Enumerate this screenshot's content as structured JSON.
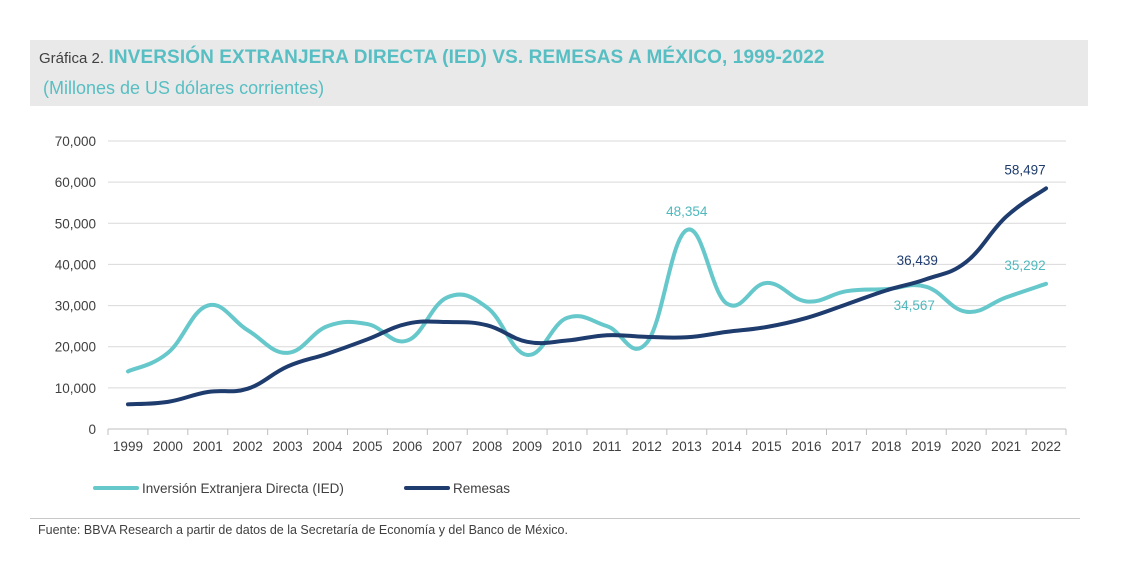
{
  "header": {
    "prefix": "Gráfica 2.",
    "title": "INVERSIÓN EXTRANJERA DIRECTA (IED) VS. REMESAS A MÉXICO, 1999-2022",
    "subtitle": "(Millones de US dólares corrientes)"
  },
  "source": "Fuente: BBVA Research a partir de datos de la Secretaría de Economía y del Banco de México.",
  "chart_data": {
    "type": "line",
    "title": "INVERSIÓN EXTRANJERA DIRECTA (IED) VS. REMESAS A MÉXICO, 1999-2022",
    "subtitle": "(Millones de US dólares corrientes)",
    "categories": [
      "1999",
      "2000",
      "2001",
      "2002",
      "2003",
      "2004",
      "2005",
      "2006",
      "2007",
      "2008",
      "2009",
      "2010",
      "2011",
      "2012",
      "2013",
      "2014",
      "2015",
      "2016",
      "2017",
      "2018",
      "2019",
      "2020",
      "2021",
      "2022"
    ],
    "ylim": [
      0,
      70000
    ],
    "yticks": [
      0,
      10000,
      20000,
      30000,
      40000,
      50000,
      60000,
      70000
    ],
    "ytick_labels": [
      "0",
      "10,000",
      "20,000",
      "30,000",
      "40,000",
      "50,000",
      "60,000",
      "70,000"
    ],
    "grid": true,
    "legend_position": "bottom-left",
    "series": [
      {
        "name": "Inversión Extranjera Directa (IED)",
        "color": "#66c8cb",
        "values": [
          14000,
          18500,
          30000,
          24000,
          18500,
          25000,
          25500,
          21500,
          32000,
          29500,
          18000,
          27000,
          25000,
          21000,
          48354,
          30500,
          35500,
          31000,
          33500,
          34000,
          34567,
          28500,
          32000,
          35292
        ],
        "labels": [
          {
            "category": "2013",
            "text": "48,354"
          },
          {
            "category": "2019",
            "text": "34,567"
          },
          {
            "category": "2022",
            "text": "35,292"
          }
        ]
      },
      {
        "name": "Remesas",
        "color": "#1f3c6e",
        "values": [
          6000,
          6600,
          9000,
          9800,
          15200,
          18300,
          21800,
          25600,
          26000,
          25200,
          21200,
          21500,
          22800,
          22400,
          22300,
          23600,
          24800,
          27000,
          30300,
          33700,
          36439,
          40600,
          51600,
          58497
        ],
        "labels": [
          {
            "category": "2019",
            "text": "36,439"
          },
          {
            "category": "2022",
            "text": "58,497"
          }
        ]
      }
    ]
  }
}
